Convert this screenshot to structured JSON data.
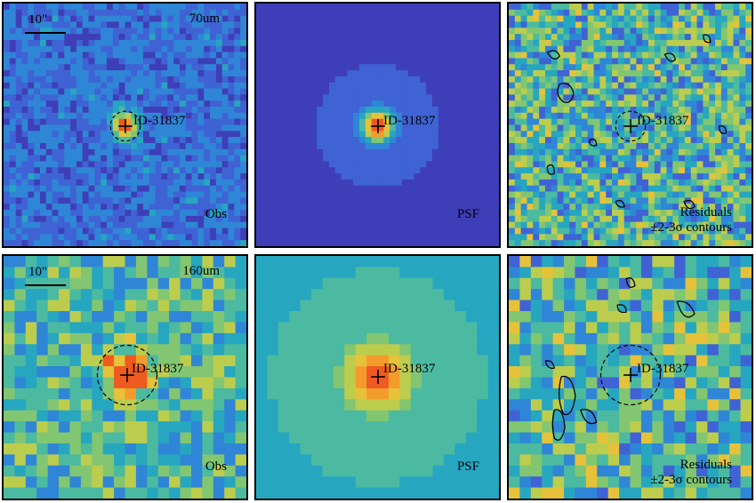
{
  "rows": [
    {
      "band": "70um",
      "scale": "10\"",
      "source": "ID-31837",
      "obs_label": "Obs",
      "psf_label": "PSF",
      "res_label_1": "Residuals",
      "res_label_2": "±2-3σ contours"
    },
    {
      "band": "160um",
      "scale": "10\"",
      "source": "ID-31837",
      "obs_label": "Obs",
      "psf_label": "PSF",
      "res_label_1": "Residuals",
      "res_label_2": "±2-3σ contours"
    }
  ],
  "colormap": [
    "#3b2a8f",
    "#3e3fb8",
    "#3f63d4",
    "#2f86d6",
    "#27a6c0",
    "#4bbaa0",
    "#82c672",
    "#bccd4e",
    "#e6c23a",
    "#f39c2c",
    "#ee5a20"
  ]
}
